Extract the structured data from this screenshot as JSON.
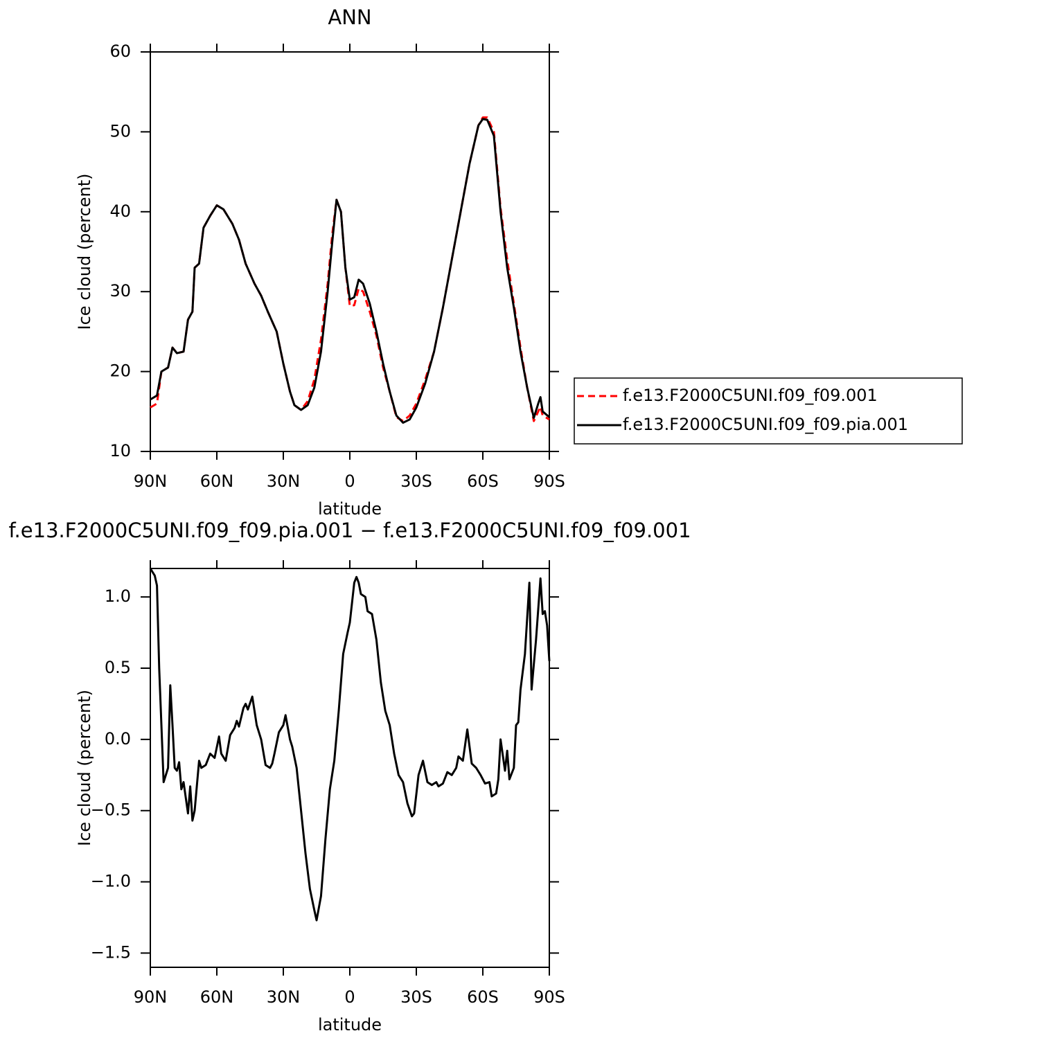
{
  "chart_data": [
    {
      "type": "line",
      "title": "ANN",
      "xlabel": "latitude",
      "ylabel": "Ice cloud (percent)",
      "x": [
        90,
        87,
        85,
        82,
        80,
        78,
        75,
        73,
        71,
        70,
        68,
        66,
        63,
        60,
        57,
        53,
        50,
        47,
        43,
        40,
        37,
        33,
        30,
        27,
        25,
        22,
        19,
        16,
        13,
        10,
        8,
        6,
        4,
        2,
        0,
        -2,
        -4,
        -6,
        -9,
        -12,
        -15,
        -18,
        -21,
        -24,
        -27,
        -30,
        -34,
        -38,
        -42,
        -46,
        -50,
        -54,
        -58,
        -60,
        -62,
        -65,
        -68,
        -71,
        -74,
        -77,
        -80,
        -83,
        -85,
        -86,
        -87,
        -90
      ],
      "series": [
        {
          "name": "f.e13.F2000C5UNI.f09_f09.001",
          "color": "#ff0000",
          "dash": true,
          "values": [
            15.5,
            16,
            20,
            20.5,
            23,
            22.3,
            22.5,
            26.5,
            27.5,
            33,
            33.5,
            38,
            39.5,
            40.8,
            40.3,
            38.5,
            36.5,
            33.5,
            31,
            29.5,
            27.5,
            25,
            21,
            17.5,
            15.8,
            15.2,
            16.3,
            19,
            24,
            31,
            37,
            41.5,
            40,
            33,
            28.2,
            28.3,
            30.4,
            30,
            27.5,
            24.5,
            20.5,
            17.5,
            14.3,
            13.8,
            14.5,
            16,
            19,
            22.5,
            28,
            34,
            40,
            46,
            50.8,
            51.8,
            51.8,
            50,
            40.5,
            34,
            28.5,
            23,
            18,
            13.8,
            15,
            15.6,
            14.5,
            14
          ]
        },
        {
          "name": "f.e13.F2000C5UNI.f09_f09.pia.001",
          "color": "#000000",
          "dash": false,
          "values": [
            16.5,
            17,
            20,
            20.5,
            23,
            22.3,
            22.5,
            26.5,
            27.5,
            33,
            33.5,
            38,
            39.5,
            40.8,
            40.3,
            38.5,
            36.5,
            33.5,
            31,
            29.5,
            27.5,
            25,
            21,
            17.5,
            15.8,
            15.2,
            15.8,
            18,
            22.5,
            30,
            36,
            41.5,
            40,
            33,
            29,
            29.3,
            31.5,
            31,
            28.5,
            25,
            21,
            17.5,
            14.5,
            13.6,
            14,
            15.5,
            18.5,
            22.5,
            28,
            34,
            40,
            46,
            50.8,
            51.6,
            51.5,
            49.5,
            40,
            33,
            28,
            22.5,
            18,
            14.2,
            16,
            16.8,
            15,
            14.3
          ]
        }
      ],
      "xlim": [
        90,
        -90
      ],
      "ylim": [
        10,
        60
      ],
      "xticks": [
        {
          "value": 90,
          "label": "90N"
        },
        {
          "value": 60,
          "label": "60N"
        },
        {
          "value": 30,
          "label": "30N"
        },
        0,
        {
          "value": -30,
          "label": "30S"
        },
        {
          "value": -60,
          "label": "60S"
        },
        {
          "value": -90,
          "label": "90S"
        }
      ],
      "yticks": [
        10,
        20,
        30,
        40,
        50,
        60
      ],
      "legend": "right"
    },
    {
      "type": "line",
      "title": "f.e13.F2000C5UNI.f09_f09.pia.001 − f.e13.F2000C5UNI.f09_f09.001",
      "xlabel": "latitude",
      "ylabel": "Ice cloud (percent)",
      "x": [
        90,
        88,
        87,
        86,
        84,
        83,
        82,
        81,
        80,
        79,
        78,
        77,
        76,
        75,
        73,
        72,
        71,
        70,
        68,
        67,
        65,
        63,
        61,
        59,
        58,
        56,
        54,
        52,
        51,
        50,
        48,
        47,
        46,
        44,
        42,
        40,
        38,
        36,
        35,
        34,
        32,
        30,
        29,
        27,
        26,
        24,
        22,
        20,
        18,
        16,
        15,
        13,
        11,
        9,
        7,
        5,
        3,
        1,
        0,
        -2,
        -3,
        -4,
        -5,
        -7,
        -8,
        -10,
        -12,
        -14,
        -16,
        -18,
        -20,
        -22,
        -24,
        -26,
        -28,
        -29,
        -31,
        -33,
        -35,
        -37,
        -39,
        -40,
        -42,
        -44,
        -46,
        -48,
        -49,
        -51,
        -53,
        -55,
        -57,
        -59,
        -61,
        -63,
        -64,
        -66,
        -67,
        -68,
        -70,
        -71,
        -72,
        -74,
        -75,
        -76,
        -77,
        -79,
        -81,
        -82,
        -84,
        -86,
        -87,
        -88,
        -89,
        -90
      ],
      "series": [
        {
          "color": "#000000",
          "dash": false,
          "values": [
            1.2,
            1.15,
            1.08,
            0.5,
            -0.3,
            -0.25,
            -0.2,
            0.38,
            0.1,
            -0.2,
            -0.22,
            -0.16,
            -0.35,
            -0.3,
            -0.52,
            -0.33,
            -0.57,
            -0.5,
            -0.15,
            -0.2,
            -0.18,
            -0.1,
            -0.13,
            0.02,
            -0.1,
            -0.15,
            0.03,
            0.08,
            0.13,
            0.09,
            0.22,
            0.25,
            0.21,
            0.3,
            0.1,
            0,
            -0.18,
            -0.2,
            -0.17,
            -0.1,
            0.05,
            0.1,
            0.17,
            0,
            -0.05,
            -0.2,
            -0.5,
            -0.8,
            -1.05,
            -1.2,
            -1.27,
            -1.1,
            -0.7,
            -0.35,
            -0.15,
            0.2,
            0.6,
            0.75,
            0.82,
            1.1,
            1.14,
            1.1,
            1.02,
            1,
            0.9,
            0.88,
            0.7,
            0.4,
            0.2,
            0.1,
            -0.1,
            -0.25,
            -0.3,
            -0.45,
            -0.54,
            -0.52,
            -0.25,
            -0.15,
            -0.3,
            -0.32,
            -0.3,
            -0.33,
            -0.31,
            -0.23,
            -0.25,
            -0.2,
            -0.12,
            -0.15,
            0.07,
            -0.17,
            -0.2,
            -0.25,
            -0.31,
            -0.3,
            -0.4,
            -0.38,
            -0.28,
            0,
            -0.22,
            -0.08,
            -0.28,
            -0.2,
            0.1,
            0.12,
            0.35,
            0.6,
            1.1,
            0.35,
            0.7,
            1.13,
            0.88,
            0.9,
            0.8,
            0.55
          ]
        }
      ],
      "xlim": [
        90,
        -90
      ],
      "ylim": [
        -1.6,
        1.2
      ],
      "xticks": [
        {
          "value": 90,
          "label": "90N"
        },
        {
          "value": 60,
          "label": "60N"
        },
        {
          "value": 30,
          "label": "30N"
        },
        0,
        {
          "value": -30,
          "label": "30S"
        },
        {
          "value": -60,
          "label": "60S"
        },
        {
          "value": -90,
          "label": "90S"
        }
      ],
      "yticks": [
        {
          "value": -1.5,
          "label": "−1.5"
        },
        {
          "value": -1,
          "label": "−1.0"
        },
        {
          "value": -0.5,
          "label": "−0.5"
        },
        {
          "value": 0,
          "label": "0.0"
        },
        {
          "value": 0.5,
          "label": "0.5"
        },
        {
          "value": 1,
          "label": "1.0"
        }
      ]
    }
  ]
}
